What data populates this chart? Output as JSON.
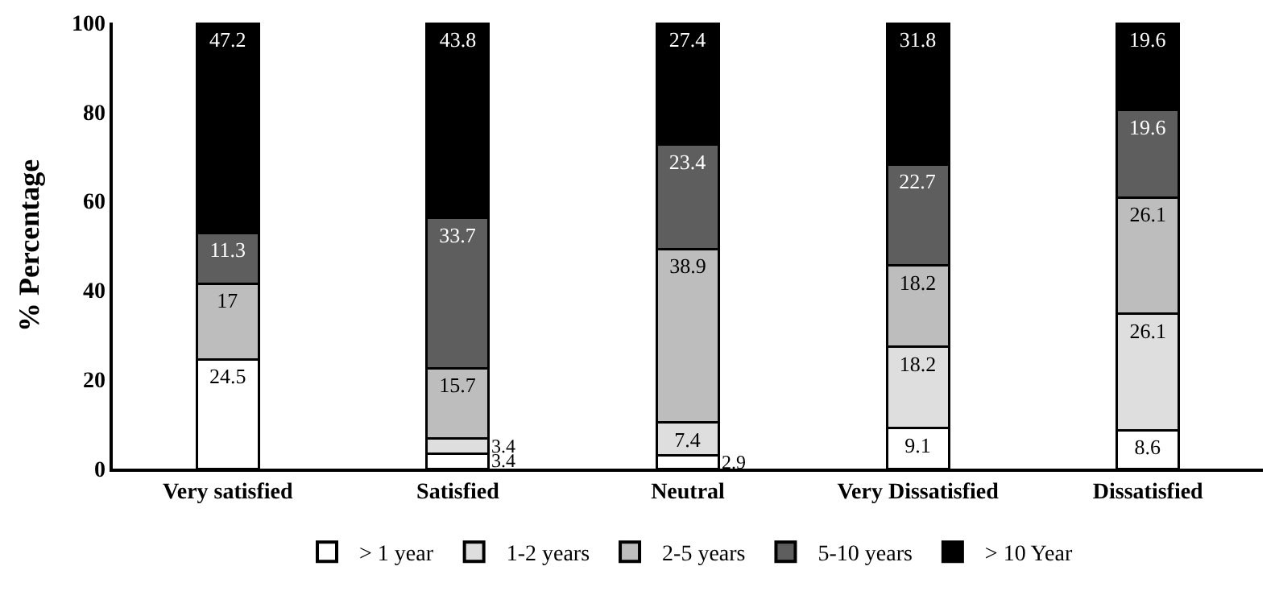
{
  "chart_data": {
    "type": "bar",
    "stacked": true,
    "ylabel": "% Percentage",
    "categories": [
      "Very satisfied",
      "Satisfied",
      "Neutral",
      "Very Dissatisfied",
      "Dissatisfied"
    ],
    "series": [
      {
        "name": "> 1 year",
        "color": "#ffffff",
        "values": [
          24.5,
          3.4,
          2.9,
          9.1,
          8.6
        ]
      },
      {
        "name": "1-2 years",
        "color": "#dedede",
        "values": [
          null,
          3.4,
          7.4,
          18.2,
          26.1
        ]
      },
      {
        "name": "2-5 years",
        "color": "#bdbdbd",
        "values": [
          17,
          15.7,
          38.9,
          18.2,
          26.1
        ]
      },
      {
        "name": "5-10 years",
        "color": "#5e5e5e",
        "values": [
          11.3,
          33.7,
          23.4,
          22.7,
          19.6
        ]
      },
      {
        "name": "> 10 Year",
        "color": "#000000",
        "values": [
          47.2,
          43.8,
          27.4,
          31.8,
          19.6
        ]
      }
    ],
    "ylim": [
      0,
      100
    ],
    "yticks": [
      0,
      20,
      40,
      60,
      80,
      100
    ],
    "grid": false,
    "legend": "bottom",
    "data_labels": true
  }
}
